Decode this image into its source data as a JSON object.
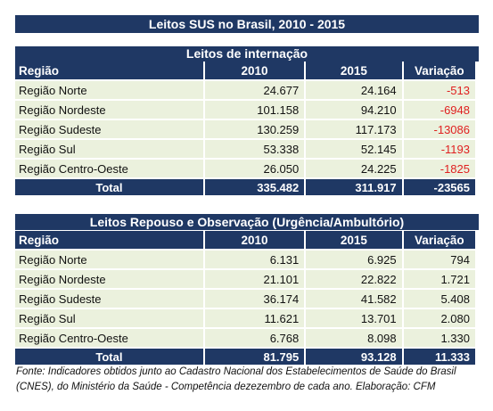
{
  "title": "Leitos SUS no Brasil, 2010 - 2015",
  "table1": {
    "heading": "Leitos de internação",
    "headers": [
      "Região",
      "2010",
      "2015",
      "Variação"
    ],
    "rows": [
      [
        "Região Norte",
        "24.677",
        "24.164",
        "-513"
      ],
      [
        "Região Nordeste",
        "101.158",
        "94.210",
        "-6948"
      ],
      [
        "Região Sudeste",
        "130.259",
        "117.173",
        "-13086"
      ],
      [
        "Região Sul",
        "53.338",
        "52.145",
        "-1193"
      ],
      [
        "Região Centro-Oeste",
        "26.050",
        "24.225",
        "-1825"
      ]
    ],
    "total": [
      "Total",
      "335.482",
      "311.917",
      "-23565"
    ]
  },
  "table2": {
    "heading": "Leitos Repouso e Observação (Urgência/Ambultório)",
    "headers": [
      "Região",
      "2010",
      "2015",
      "Variação"
    ],
    "rows": [
      [
        "Região Norte",
        "6.131",
        "6.925",
        "794"
      ],
      [
        "Região Nordeste",
        "21.101",
        "22.822",
        "1.721"
      ],
      [
        "Região Sudeste",
        "36.174",
        "41.582",
        "5.408"
      ],
      [
        "Região Sul",
        "11.621",
        "13.701",
        "2.080"
      ],
      [
        "Região Centro-Oeste",
        "6.768",
        "8.098",
        "1.330"
      ]
    ],
    "total": [
      "Total",
      "81.795",
      "93.128",
      "11.333"
    ]
  },
  "footnote": "Fonte: Indicadores obtidos junto ao Cadastro Nacional dos Estabelecimentos de Saúde do Brasil (CNES), do Ministério da Saúde - Competência dezezembro de cada ano. Elaboração: CFM",
  "colors": {
    "header": "#1f3864",
    "row": "#ebf1dd",
    "negative": "#e02020"
  }
}
